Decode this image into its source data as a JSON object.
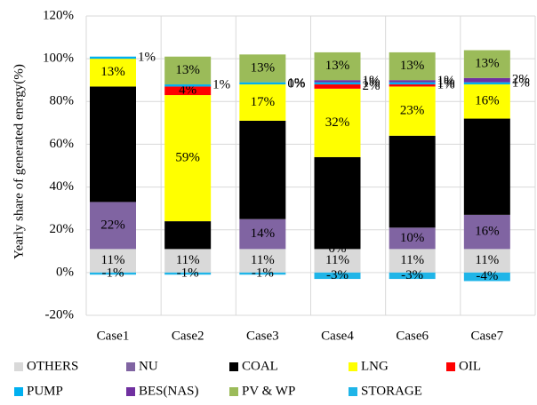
{
  "chart_data": {
    "type": "stacked_bar",
    "y_label": "Yearly share of generated energy(%)",
    "categories": [
      "Case1",
      "Case2",
      "Case3",
      "Case4",
      "Case6",
      "Case7"
    ],
    "ylim": [
      -20,
      120
    ],
    "yticks": [
      {
        "value": -20,
        "label": "-20%"
      },
      {
        "value": 0,
        "label": "0%"
      },
      {
        "value": 20,
        "label": "20%"
      },
      {
        "value": 40,
        "label": "40%"
      },
      {
        "value": 60,
        "label": "60%"
      },
      {
        "value": 80,
        "label": "80%"
      },
      {
        "value": 100,
        "label": "100%"
      },
      {
        "value": 120,
        "label": "120%"
      }
    ],
    "grid": true,
    "legend": "bottom",
    "series": [
      {
        "name": "OTHERS",
        "color": "#d9d9d9",
        "values": [
          11,
          11,
          11,
          11,
          11,
          11
        ],
        "value_labels": [
          "11%",
          "11%",
          "11%",
          "11%",
          "11%",
          "11%"
        ]
      },
      {
        "name": "NU",
        "color": "#8064a2",
        "values": [
          22,
          null,
          14,
          0,
          10,
          16
        ],
        "value_labels": [
          "22%",
          null,
          "14%",
          "0%",
          "10%",
          "16%"
        ]
      },
      {
        "name": "COAL",
        "color": "#000000",
        "values": [
          54,
          13,
          46,
          43,
          43,
          45
        ],
        "value_labels": [
          "54%",
          "13%",
          "46%",
          "43%",
          "43%",
          "45%"
        ]
      },
      {
        "name": "LNG",
        "color": "#ffff00",
        "values": [
          13,
          59,
          17,
          32,
          23,
          16
        ],
        "value_labels": [
          "13%",
          "59%",
          "17%",
          "32%",
          "23%",
          "16%"
        ]
      },
      {
        "name": "OIL",
        "color": "#ff0000",
        "values": [
          null,
          4,
          0,
          2,
          1,
          null
        ],
        "value_labels": [
          null,
          "4%",
          "0%",
          "2%",
          "1%",
          null
        ]
      },
      {
        "name": "PUMP",
        "color": "#00b0f0",
        "values": [
          1,
          1,
          1,
          1,
          1,
          1
        ],
        "value_labels": [
          "1%",
          "1%",
          "1%",
          "1%",
          "1%",
          "1%"
        ]
      },
      {
        "name": "BES(NAS)",
        "color": "#7030a0",
        "values": [
          null,
          null,
          null,
          1,
          1,
          2
        ],
        "value_labels": [
          null,
          null,
          null,
          "1%",
          "1%",
          "2%"
        ]
      },
      {
        "name": "PV & WP",
        "color": "#9bbb59",
        "values": [
          null,
          13,
          13,
          13,
          13,
          13
        ],
        "value_labels": [
          null,
          "13%",
          "13%",
          "13%",
          "13%",
          "13%"
        ]
      },
      {
        "name": "STORAGE",
        "color": "#1fb5e8",
        "values": [
          -1,
          -1,
          -1,
          -3,
          -3,
          -4
        ],
        "value_labels": [
          "-1%",
          "-1%",
          "-1%",
          "-3%",
          "-3%",
          "-4%"
        ]
      }
    ]
  }
}
